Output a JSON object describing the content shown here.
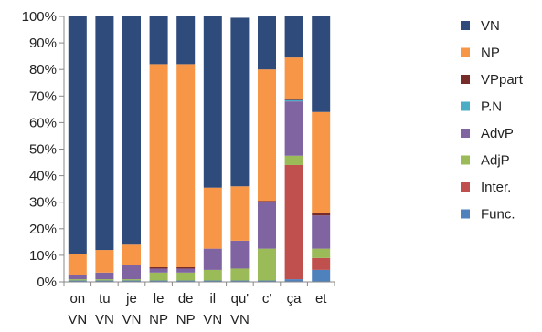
{
  "chart_data": {
    "type": "bar",
    "stacked": true,
    "percent": true,
    "categories": [
      [
        "on",
        "VN"
      ],
      [
        "tu",
        "VN"
      ],
      [
        "je",
        "VN"
      ],
      [
        "le",
        "NP"
      ],
      [
        "de",
        "NP"
      ],
      [
        "il",
        "VN"
      ],
      [
        "qu'",
        "VN"
      ],
      [
        "c'",
        ""
      ],
      [
        "ça",
        ""
      ],
      [
        "et",
        ""
      ]
    ],
    "ylim": [
      0,
      100
    ],
    "yticks": [
      "0%",
      "10%",
      "20%",
      "30%",
      "40%",
      "50%",
      "60%",
      "70%",
      "80%",
      "90%",
      "100%"
    ],
    "legend_position": "right",
    "grid": false,
    "series": [
      {
        "name": "Func.",
        "color": "#4f81bd",
        "values": [
          0.5,
          0.5,
          0.5,
          0.5,
          0.5,
          0.5,
          0.5,
          0.5,
          1,
          4.5
        ]
      },
      {
        "name": "Inter.",
        "color": "#c0504d",
        "values": [
          0,
          0,
          0,
          0,
          0,
          0,
          0,
          0,
          43,
          4.5
        ]
      },
      {
        "name": "AdjP",
        "color": "#9bbb59",
        "values": [
          0.5,
          0.5,
          0.5,
          3,
          3,
          4,
          4.5,
          12,
          3.5,
          3.5
        ]
      },
      {
        "name": "AdvP",
        "color": "#8064a2",
        "values": [
          1.5,
          2.5,
          5.5,
          1.5,
          1.5,
          8,
          10.5,
          17.5,
          20.5,
          12.5
        ]
      },
      {
        "name": "P.N",
        "color": "#4bacc6",
        "values": [
          0,
          0,
          0,
          0,
          0,
          0,
          0,
          0,
          0.5,
          0
        ]
      },
      {
        "name": "VPpart",
        "color": "#772c2a",
        "values": [
          0,
          0,
          0,
          0.5,
          0.5,
          0,
          0,
          0.5,
          0.5,
          1
        ]
      },
      {
        "name": "NP",
        "color": "#f79646",
        "values": [
          8,
          8.5,
          7.5,
          76.5,
          76.5,
          23,
          20.5,
          49.5,
          15.5,
          38
        ]
      },
      {
        "name": "VN",
        "color": "#2f4b7c",
        "values": [
          89.5,
          88,
          86,
          18,
          18,
          64.5,
          63.5,
          20,
          15.5,
          36
        ]
      }
    ]
  }
}
